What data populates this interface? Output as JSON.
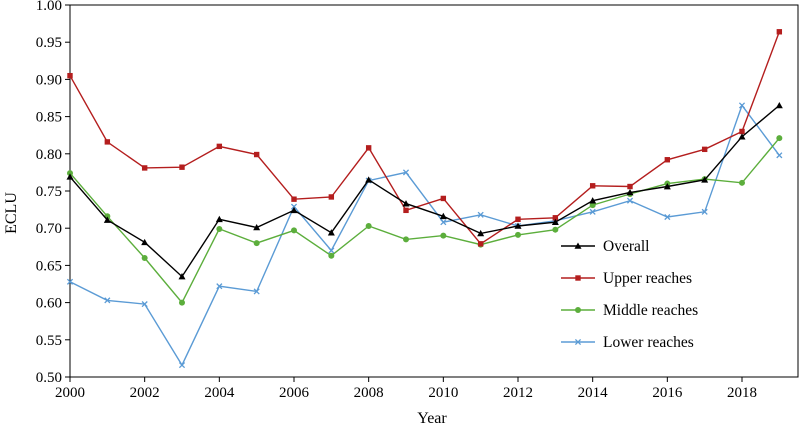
{
  "chart_data": {
    "type": "line",
    "xlabel": "Year",
    "ylabel": "ECLU",
    "xlim": [
      2000,
      2019.5
    ],
    "ylim": [
      0.5,
      1.0
    ],
    "x_ticks": [
      2000,
      2002,
      2004,
      2006,
      2008,
      2010,
      2012,
      2014,
      2016,
      2018
    ],
    "y_ticks": [
      0.5,
      0.55,
      0.6,
      0.65,
      0.7,
      0.75,
      0.8,
      0.85,
      0.9,
      0.95,
      1.0
    ],
    "y_tick_labels": [
      "0.50",
      "0.55",
      "0.60",
      "0.65",
      "0.70",
      "0.75",
      "0.80",
      "0.85",
      "0.90",
      "0.95",
      "1.00"
    ],
    "x": [
      2000,
      2001,
      2002,
      2003,
      2004,
      2005,
      2006,
      2007,
      2008,
      2009,
      2010,
      2011,
      2012,
      2013,
      2014,
      2015,
      2016,
      2017,
      2018,
      2019
    ],
    "legend_position": "right-middle",
    "grid": false,
    "series": [
      {
        "name": "Overall",
        "color": "#000000",
        "marker": "triangle",
        "values": [
          0.769,
          0.711,
          0.681,
          0.635,
          0.712,
          0.701,
          0.724,
          0.694,
          0.765,
          0.733,
          0.716,
          0.693,
          0.703,
          0.708,
          0.737,
          0.748,
          0.756,
          0.765,
          0.823,
          0.865
        ]
      },
      {
        "name": "Upper reaches",
        "color": "#B41E1E",
        "marker": "square",
        "values": [
          0.905,
          0.816,
          0.781,
          0.782,
          0.81,
          0.799,
          0.739,
          0.742,
          0.808,
          0.724,
          0.74,
          0.679,
          0.712,
          0.714,
          0.757,
          0.756,
          0.792,
          0.806,
          0.83,
          0.964
        ]
      },
      {
        "name": "Middle reaches",
        "color": "#5CAE3C",
        "marker": "circle",
        "values": [
          0.774,
          0.716,
          0.66,
          0.6,
          0.699,
          0.68,
          0.697,
          0.663,
          0.703,
          0.685,
          0.69,
          0.678,
          0.691,
          0.698,
          0.731,
          0.746,
          0.76,
          0.766,
          0.761,
          0.821
        ]
      },
      {
        "name": "Lower reaches",
        "color": "#5B9BD5",
        "marker": "x",
        "values": [
          0.628,
          0.603,
          0.598,
          0.516,
          0.622,
          0.615,
          0.729,
          0.67,
          0.764,
          0.775,
          0.708,
          0.718,
          0.703,
          0.71,
          0.722,
          0.737,
          0.715,
          0.722,
          0.865,
          0.798
        ]
      }
    ]
  }
}
